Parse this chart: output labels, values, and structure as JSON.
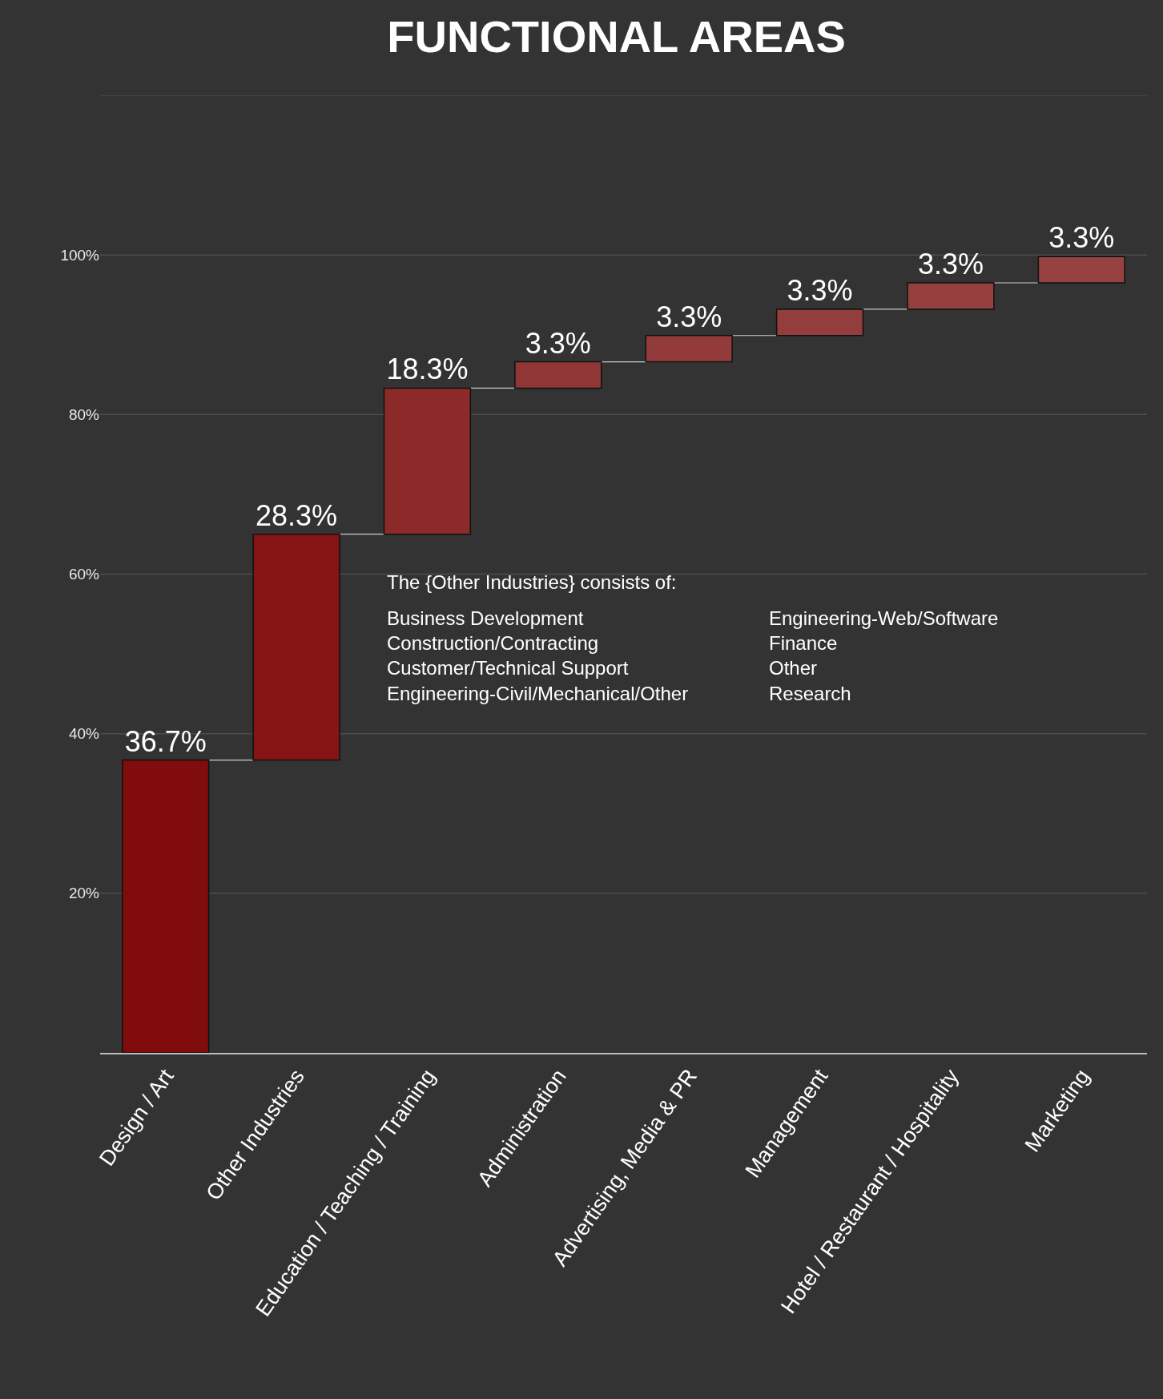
{
  "chart_data": {
    "type": "bar",
    "title": "FUNCTIONAL AREAS",
    "categories": [
      "Design / Art",
      "Other Industries",
      "Education / Teaching / Training",
      "Administration",
      "Advertising, Media & PR",
      "Management",
      "Hotel / Restaurant / Hospitality",
      "Marketing"
    ],
    "values": [
      36.7,
      28.3,
      18.3,
      3.3,
      3.3,
      3.3,
      3.3,
      3.3
    ],
    "base": [
      0,
      36.7,
      65,
      83.3,
      86.6,
      89.9,
      93.2,
      96.5
    ],
    "colors": [
      "#800c0c",
      "#861414",
      "#8c2a2a",
      "#913636",
      "#933a3a",
      "#943d3d",
      "#953f3f",
      "#964242"
    ],
    "value_labels": [
      "36.7%",
      "28.3%",
      "18.3%",
      "3.3%",
      "3.3%",
      "3.3%",
      "3.3%",
      "3.3%"
    ],
    "ylim": [
      0,
      120
    ],
    "yticks": [
      {
        "value": 20,
        "label": "20%"
      },
      {
        "value": 40,
        "label": "40%"
      },
      {
        "value": 60,
        "label": "60%"
      },
      {
        "value": 80,
        "label": "80%"
      },
      {
        "value": 100,
        "label": "100%"
      },
      {
        "value": 120,
        "label": null
      }
    ],
    "grid": "y",
    "annotations": [
      "The {Other Industries} consists of:",
      "Business Development\nConstruction/Contracting\nCustomer/Technical Support\nEngineering-Civil/Mechanical/Other",
      "Engineering-Web/Software\nFinance\nOther\nResearch"
    ]
  }
}
